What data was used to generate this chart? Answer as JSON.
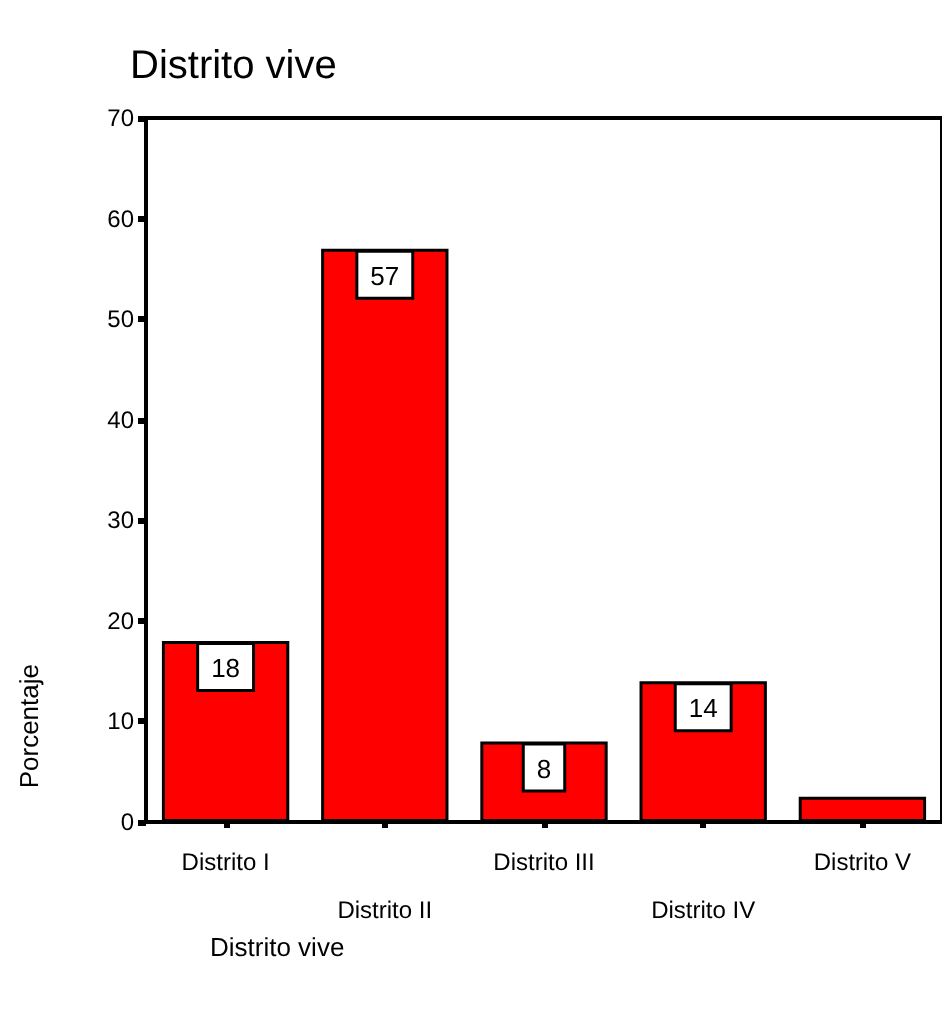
{
  "chart_data": {
    "type": "bar",
    "title": "Distrito vive",
    "xlabel": "Distrito vive",
    "ylabel": "Porcentaje",
    "categories": [
      "Distrito I",
      "Distrito II",
      "Distrito III",
      "Distrito IV",
      "Distrito V"
    ],
    "values": [
      18,
      57,
      8,
      14,
      2.5
    ],
    "value_labels": [
      "18",
      "57",
      "8",
      "14",
      null
    ],
    "color": "#ff0000",
    "ylim": [
      0,
      70
    ],
    "yticks": [
      0,
      10,
      20,
      30,
      40,
      50,
      60,
      70
    ],
    "grid": false
  }
}
